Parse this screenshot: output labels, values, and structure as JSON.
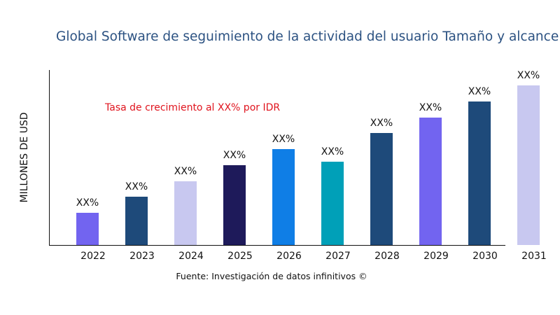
{
  "chart_data": {
    "type": "bar",
    "title": "Global Software de seguimiento de la actividad del usuario Tamaño y alcance d",
    "ylabel": "MILLONES DE USD",
    "xlabel": "",
    "annotation": "Tasa de crecimiento al XX% por IDR",
    "source": "Fuente: Investigación de datos infinitivos ©",
    "categories": [
      "2022",
      "2023",
      "2024",
      "2025",
      "2026",
      "2027",
      "2028",
      "2029",
      "2030",
      "2031"
    ],
    "values": [
      46,
      69,
      91,
      114,
      137,
      119,
      160,
      182,
      205,
      228
    ],
    "data_labels": [
      "XX%",
      "XX%",
      "XX%",
      "XX%",
      "XX%",
      "XX%",
      "XX%",
      "XX%",
      "XX%",
      "XX%"
    ],
    "colors": [
      "#7264f0",
      "#1e4a7a",
      "#c8c8f0",
      "#1e1a5a",
      "#0f7ee6",
      "#00a0b8",
      "#1e4a7a",
      "#7264f0",
      "#1e4a7a",
      "#c8c8f0"
    ],
    "ylim": [
      0,
      250
    ],
    "grid": false,
    "legend": "none"
  }
}
